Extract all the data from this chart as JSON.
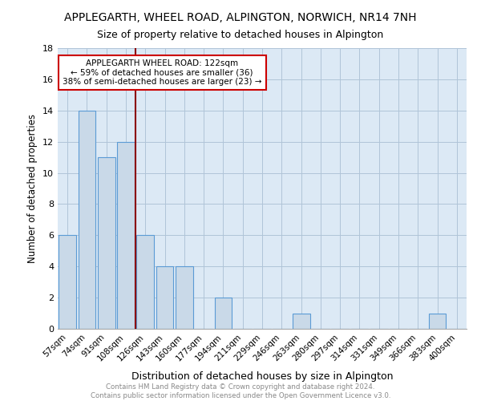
{
  "title": "APPLEGARTH, WHEEL ROAD, ALPINGTON, NORWICH, NR14 7NH",
  "subtitle": "Size of property relative to detached houses in Alpington",
  "xlabel": "Distribution of detached houses by size in Alpington",
  "ylabel": "Number of detached properties",
  "categories": [
    "57sqm",
    "74sqm",
    "91sqm",
    "108sqm",
    "126sqm",
    "143sqm",
    "160sqm",
    "177sqm",
    "194sqm",
    "211sqm",
    "229sqm",
    "246sqm",
    "263sqm",
    "280sqm",
    "297sqm",
    "314sqm",
    "331sqm",
    "349sqm",
    "366sqm",
    "383sqm",
    "400sqm"
  ],
  "values": [
    6,
    14,
    11,
    12,
    6,
    4,
    4,
    0,
    2,
    0,
    0,
    0,
    1,
    0,
    0,
    0,
    0,
    0,
    0,
    1,
    0
  ],
  "bar_color": "#c9d9e8",
  "bar_edge_color": "#5b9bd5",
  "red_line_x": 3.5,
  "annotation_text": "APPLEGARTH WHEEL ROAD: 122sqm\n← 59% of detached houses are smaller (36)\n38% of semi-detached houses are larger (23) →",
  "annotation_box_color": "#ffffff",
  "annotation_box_edge_color": "#cc0000",
  "footer_text": "Contains HM Land Registry data © Crown copyright and database right 2024.\nContains public sector information licensed under the Open Government Licence v3.0.",
  "ylim": [
    0,
    18
  ],
  "yticks": [
    0,
    2,
    4,
    6,
    8,
    10,
    12,
    14,
    16,
    18
  ],
  "grid_color": "#b0c4d8",
  "bg_color": "#dce9f5"
}
